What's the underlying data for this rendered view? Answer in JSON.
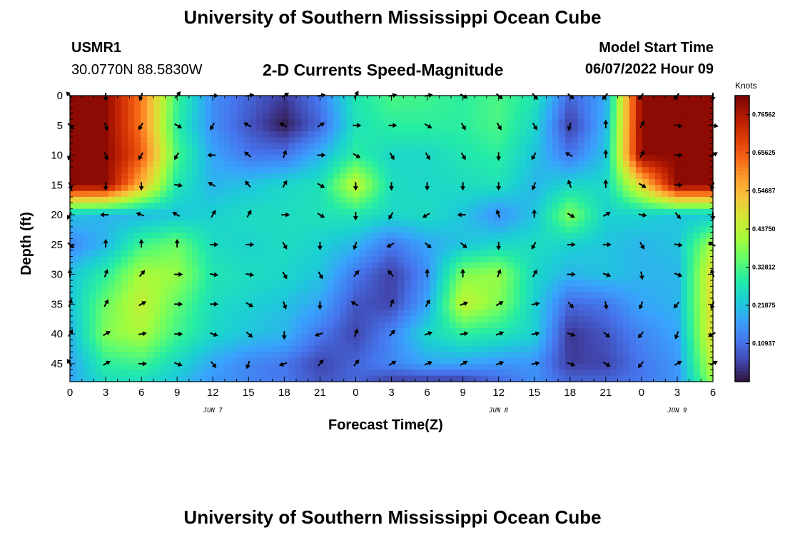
{
  "header": {
    "title": "University of Southern Mississippi Ocean Cube",
    "station_id": "USMR1",
    "coordinates": "30.0770N  88.5830W",
    "subtitle": "2-D Currents Speed-Magnitude",
    "model_start_label": "Model Start Time",
    "model_start_value": "06/07/2022 Hour 09"
  },
  "footer": {
    "title": "University of Southern Mississippi Ocean Cube"
  },
  "chart_data": {
    "type": "heatmap",
    "title": "2-D Currents Speed-Magnitude",
    "xlabel": "Forecast Time(Z)",
    "ylabel": "Depth (ft)",
    "x_tick_labels": [
      "0",
      "3",
      "6",
      "9",
      "12",
      "15",
      "18",
      "21",
      "0",
      "3",
      "6",
      "9",
      "12",
      "15",
      "18",
      "21",
      "0",
      "3",
      "6"
    ],
    "x_range_hours": [
      0,
      54
    ],
    "date_labels": [
      {
        "text": "JUN 7",
        "hour": 12
      },
      {
        "text": "JUN 8",
        "hour": 36
      },
      {
        "text": "JUN 9",
        "hour": 51
      }
    ],
    "y_ticks": [
      0,
      5,
      10,
      15,
      20,
      25,
      30,
      35,
      40,
      45
    ],
    "y_range": [
      0,
      48
    ],
    "y_inverted": true,
    "colorbar": {
      "title": "Knots",
      "tick_labels": [
        "0.76562",
        "0.65625",
        "0.54687",
        "0.43750",
        "0.32812",
        "0.21875",
        "0.10937"
      ],
      "tick_values": [
        0.76562,
        0.65625,
        0.54687,
        0.4375,
        0.32812,
        0.21875,
        0.10937
      ],
      "range": [
        0,
        0.82
      ],
      "colors": [
        "#30123b",
        "#4145ab",
        "#4675ed",
        "#39a2fc",
        "#1bcfd4",
        "#24eca6",
        "#61fc6c",
        "#a4fc3b",
        "#d1e834",
        "#f3c63a",
        "#fe9b2d",
        "#f36315",
        "#d93806",
        "#b11901",
        "#7a0403"
      ]
    },
    "speed_field": {
      "hours": [
        0,
        3,
        6,
        9,
        12,
        15,
        18,
        21,
        24,
        27,
        30,
        33,
        36,
        39,
        42,
        45,
        48,
        51,
        54
      ],
      "depths": [
        0,
        5,
        10,
        15,
        20,
        25,
        30,
        35,
        40,
        45,
        48
      ],
      "values": [
        [
          0.8,
          0.8,
          0.62,
          0.32,
          0.15,
          0.1,
          0.05,
          0.13,
          0.28,
          0.33,
          0.32,
          0.3,
          0.33,
          0.28,
          0.1,
          0.18,
          0.8,
          0.8,
          0.8
        ],
        [
          0.8,
          0.8,
          0.62,
          0.3,
          0.15,
          0.08,
          0.01,
          0.1,
          0.27,
          0.3,
          0.3,
          0.3,
          0.33,
          0.25,
          0.05,
          0.2,
          0.8,
          0.8,
          0.8
        ],
        [
          0.8,
          0.8,
          0.66,
          0.33,
          0.18,
          0.12,
          0.12,
          0.2,
          0.3,
          0.25,
          0.25,
          0.28,
          0.3,
          0.22,
          0.12,
          0.22,
          0.8,
          0.8,
          0.8
        ],
        [
          0.8,
          0.8,
          0.55,
          0.28,
          0.2,
          0.22,
          0.25,
          0.27,
          0.45,
          0.26,
          0.25,
          0.26,
          0.27,
          0.2,
          0.25,
          0.25,
          0.5,
          0.8,
          0.8
        ],
        [
          0.22,
          0.2,
          0.2,
          0.22,
          0.24,
          0.26,
          0.26,
          0.27,
          0.28,
          0.25,
          0.26,
          0.22,
          0.15,
          0.22,
          0.38,
          0.24,
          0.24,
          0.22,
          0.22
        ],
        [
          0.14,
          0.2,
          0.32,
          0.36,
          0.26,
          0.24,
          0.26,
          0.24,
          0.2,
          0.12,
          0.18,
          0.22,
          0.25,
          0.26,
          0.24,
          0.22,
          0.2,
          0.22,
          0.42
        ],
        [
          0.22,
          0.3,
          0.42,
          0.4,
          0.28,
          0.26,
          0.25,
          0.22,
          0.12,
          0.05,
          0.15,
          0.38,
          0.4,
          0.25,
          0.2,
          0.22,
          0.2,
          0.2,
          0.5
        ],
        [
          0.22,
          0.36,
          0.45,
          0.35,
          0.26,
          0.24,
          0.22,
          0.18,
          0.08,
          0.06,
          0.18,
          0.45,
          0.38,
          0.24,
          0.1,
          0.12,
          0.18,
          0.2,
          0.5
        ],
        [
          0.2,
          0.38,
          0.42,
          0.32,
          0.25,
          0.22,
          0.2,
          0.12,
          0.06,
          0.14,
          0.25,
          0.3,
          0.28,
          0.24,
          0.04,
          0.08,
          0.14,
          0.18,
          0.5
        ],
        [
          0.18,
          0.3,
          0.32,
          0.25,
          0.18,
          0.14,
          0.12,
          0.06,
          0.1,
          0.14,
          0.18,
          0.18,
          0.16,
          0.16,
          0.05,
          0.06,
          0.12,
          0.16,
          0.45
        ],
        [
          0.18,
          0.26,
          0.26,
          0.22,
          0.16,
          0.14,
          0.12,
          0.08,
          0.1,
          0.05,
          0.05,
          0.05,
          0.1,
          0.15,
          0.1,
          0.1,
          0.12,
          0.16,
          0.4
        ]
      ]
    },
    "vectors": {
      "hours": [
        0,
        3,
        6,
        9,
        12,
        15,
        18,
        21,
        24,
        27,
        30,
        33,
        36,
        39,
        42,
        45,
        48,
        51,
        54
      ],
      "depths": [
        0,
        5,
        10,
        15,
        20,
        25,
        30,
        35,
        40,
        45
      ],
      "directions_deg": [
        [
          315,
          180,
          200,
          40,
          90,
          80,
          60,
          80,
          30,
          80,
          80,
          120,
          130,
          140,
          130,
          220,
          220,
          220,
          180
        ],
        [
          135,
          160,
          210,
          120,
          210,
          300,
          300,
          60,
          90,
          90,
          120,
          150,
          150,
          150,
          200,
          0,
          30,
          100,
          100
        ],
        [
          200,
          160,
          210,
          210,
          270,
          310,
          20,
          90,
          120,
          150,
          150,
          150,
          180,
          210,
          300,
          0,
          30,
          90,
          60
        ],
        [
          160,
          180,
          180,
          100,
          300,
          320,
          30,
          120,
          180,
          180,
          180,
          180,
          180,
          200,
          340,
          0,
          120,
          90,
          200
        ],
        [
          210,
          270,
          290,
          300,
          30,
          30,
          90,
          120,
          180,
          210,
          240,
          270,
          340,
          0,
          120,
          60,
          100,
          140,
          180
        ],
        [
          130,
          0,
          0,
          0,
          90,
          90,
          150,
          180,
          200,
          240,
          130,
          130,
          180,
          210,
          90,
          90,
          150,
          100,
          300
        ],
        [
          0,
          20,
          40,
          90,
          100,
          100,
          150,
          150,
          40,
          320,
          0,
          0,
          20,
          30,
          90,
          110,
          170,
          110,
          340
        ],
        [
          20,
          30,
          60,
          90,
          90,
          120,
          160,
          180,
          300,
          20,
          30,
          70,
          60,
          80,
          140,
          170,
          200,
          220,
          200
        ],
        [
          30,
          60,
          80,
          90,
          110,
          130,
          180,
          250,
          20,
          40,
          70,
          80,
          70,
          80,
          110,
          130,
          220,
          200,
          240
        ],
        [
          330,
          60,
          90,
          110,
          140,
          200,
          250,
          40,
          40,
          60,
          70,
          60,
          70,
          80,
          110,
          120,
          220,
          60,
          60
        ]
      ]
    }
  }
}
